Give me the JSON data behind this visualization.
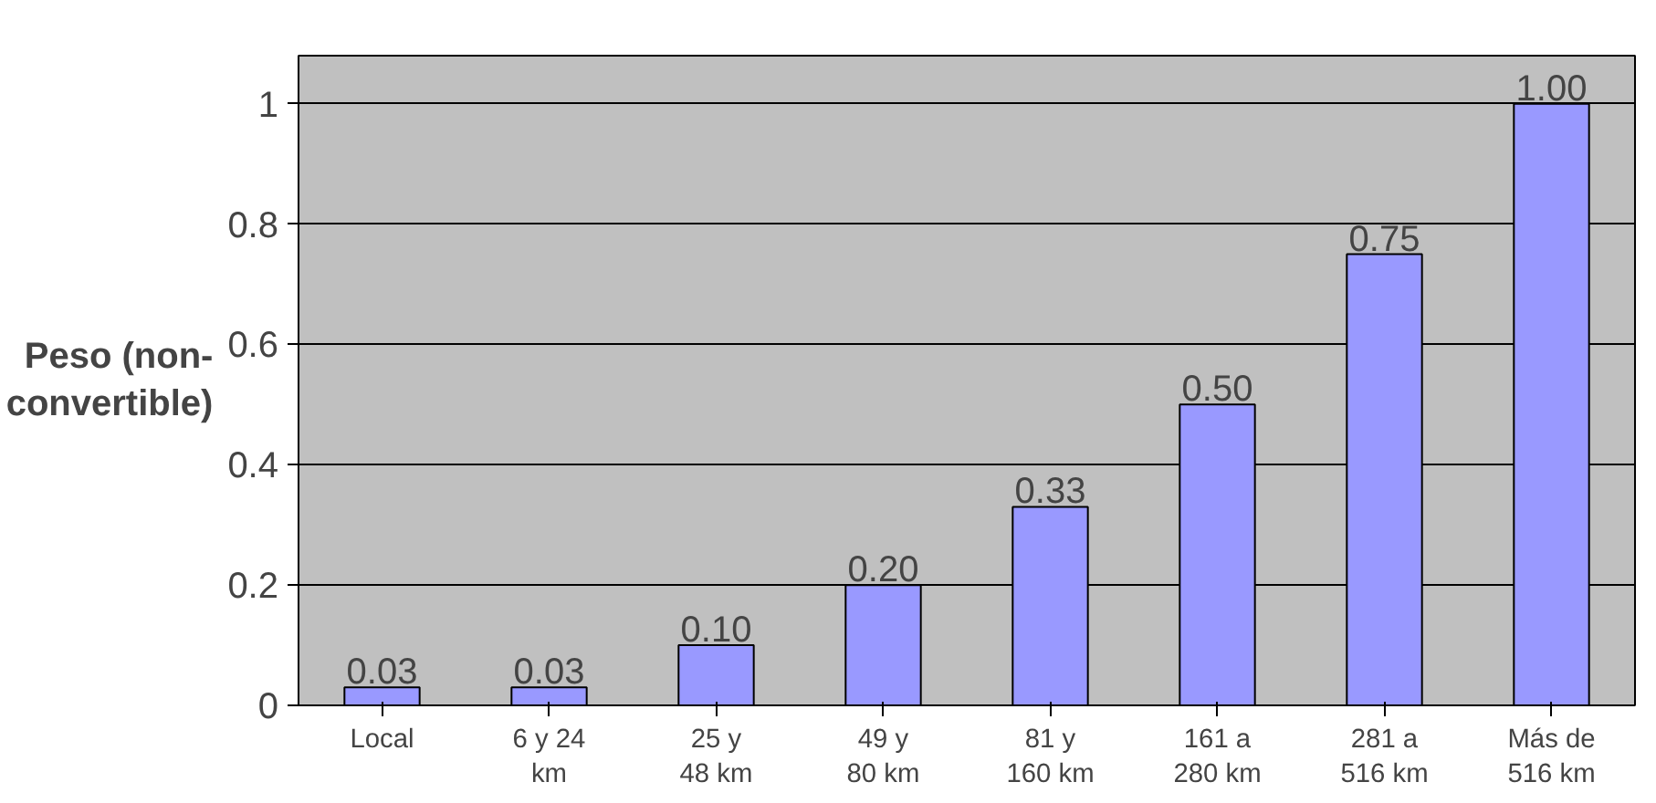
{
  "chart_data": {
    "type": "bar",
    "ylabel": "Peso (non-convertible)",
    "categories": [
      "Local",
      "6 y 24 km",
      "25 y 48 km",
      "49 y 80 km",
      "81 y 160 km",
      "161 a 280 km",
      "281 a 516 km",
      "Más de 516 km"
    ],
    "values": [
      0.03,
      0.03,
      0.1,
      0.2,
      0.33,
      0.5,
      0.75,
      1.0
    ],
    "value_labels": [
      "0.03",
      "0.03",
      "0.10",
      "0.20",
      "0.33",
      "0.50",
      "0.75",
      "1.00"
    ],
    "color": "#9999ff",
    "ylim": [
      0,
      1.08
    ],
    "yticks": [
      0,
      0.2,
      0.4,
      0.6,
      0.8,
      1
    ],
    "grid": "y"
  }
}
